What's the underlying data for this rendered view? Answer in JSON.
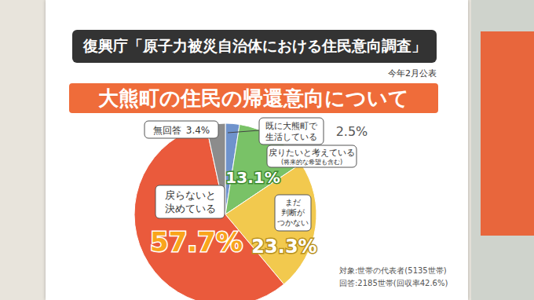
{
  "chart_data": {
    "type": "pie",
    "header": "復興庁「原子力被災自治体における住民意向調査」",
    "subtitle": "今年2月公表",
    "title": "大熊町の住民の帰還意向について",
    "categories": [
      "既に大熊町で生活している",
      "戻りたいと考えている",
      "まだ判断がつかない",
      "戻らないと決めている",
      "無回答"
    ],
    "category_notes": [
      null,
      "(将来的な希望も含む)",
      null,
      null,
      null
    ],
    "values": [
      2.5,
      13.1,
      23.3,
      57.7,
      3.4
    ],
    "value_labels": [
      "2.5%",
      "13.1%",
      "23.3%",
      "57.7%",
      "3.4%"
    ],
    "colors": [
      "#6f93cc",
      "#79c267",
      "#f2c94e",
      "#ea5a3c",
      "#8c8c8c"
    ],
    "data_labels": true,
    "annotations": [
      "対象:世帯の代表者(5135世帯)",
      "回答:2185世帯(回収率42.6%)"
    ]
  }
}
